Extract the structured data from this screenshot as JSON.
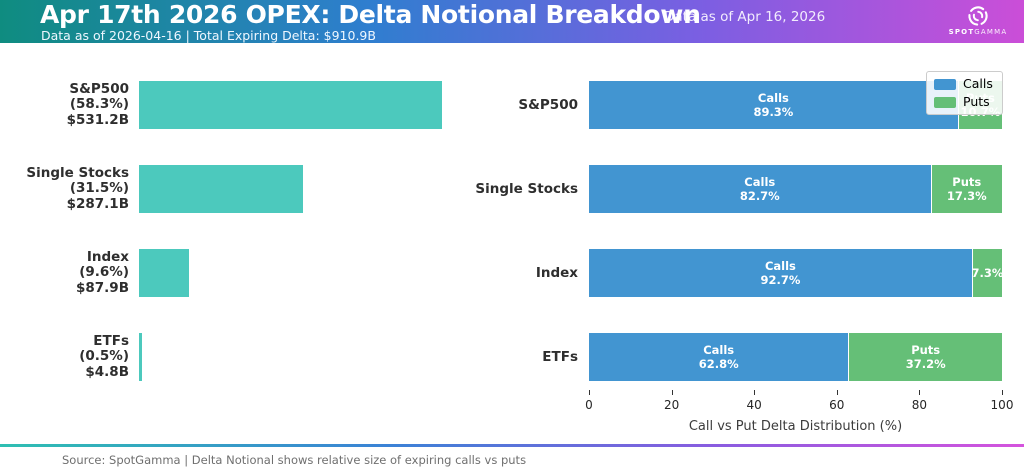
{
  "header": {
    "title": "Apr 17th 2026 OPEX: Delta Notional Breakdown",
    "subtitle": "Data as of 2026-04-16 | Total Expiring Delta: $910.9B",
    "data_as_of": "Data as of Apr 16, 2026",
    "logo": {
      "spot": "SPOT",
      "gamma": "GAMMA"
    },
    "gradient": [
      "#0f8c80",
      "#2f7ecf",
      "#7a5fe2",
      "#cb4ed8"
    ]
  },
  "colors": {
    "notional_teal": "#4cc9bd",
    "calls_blue": "#4295d1",
    "puts_green": "#65bf77"
  },
  "chart_data": [
    {
      "type": "bar",
      "name": "delta-notional-by-asset",
      "orientation": "horizontal",
      "title": "",
      "categories": [
        "S&P500",
        "Single Stocks",
        "Index",
        "ETFs"
      ],
      "pct_of_total": [
        58.3,
        31.5,
        9.6,
        0.5
      ],
      "notional": [
        "$531.2B",
        "$287.1B",
        "$87.9B",
        "$4.8B"
      ],
      "bar_color": "#4cc9bd",
      "xlim": [
        0,
        60
      ],
      "grid": false,
      "axis_labels_shown": false
    },
    {
      "type": "bar",
      "name": "call-vs-put-distribution",
      "orientation": "horizontal",
      "stacked": true,
      "title": "",
      "categories": [
        "S&P500",
        "Single Stocks",
        "Index",
        "ETFs"
      ],
      "series": [
        {
          "name": "Calls",
          "color": "#4295d1",
          "values": [
            89.3,
            82.7,
            92.7,
            62.8
          ]
        },
        {
          "name": "Puts",
          "color": "#65bf77",
          "values": [
            10.7,
            17.3,
            7.3,
            37.2
          ]
        }
      ],
      "xlabel": "Call vs Put Delta Distribution (%)",
      "xticks": [
        0,
        20,
        40,
        60,
        80,
        100
      ],
      "xlim": [
        0,
        100
      ],
      "legend": {
        "position": "upper right",
        "entries": [
          "Calls",
          "Puts"
        ]
      }
    }
  ],
  "footer": {
    "source": "Source: SpotGamma | Delta Notional shows relative size of expiring calls vs puts"
  }
}
